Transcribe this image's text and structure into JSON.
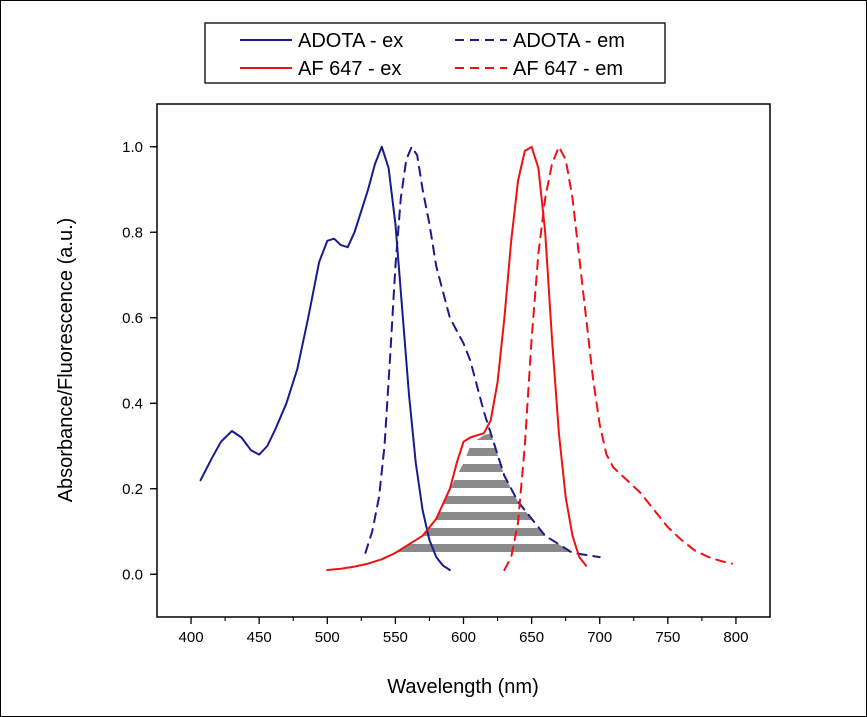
{
  "chart_data": {
    "type": "line",
    "title": "",
    "xlabel": "Wavelength (nm)",
    "ylabel": "Absorbance/Fluorescence (a.u.)",
    "xlim": [
      375,
      825
    ],
    "ylim": [
      -0.1,
      1.1
    ],
    "xticks": [
      400,
      450,
      500,
      550,
      600,
      650,
      700,
      750,
      800
    ],
    "yticks": [
      0.0,
      0.2,
      0.4,
      0.6,
      0.8,
      1.0
    ],
    "xtick_labels": [
      "400",
      "450",
      "500",
      "550",
      "600",
      "650",
      "700",
      "750",
      "800"
    ],
    "ytick_labels": [
      "0.0",
      "0.2",
      "0.4",
      "0.6",
      "0.8",
      "1.0"
    ],
    "grid": false,
    "legend_position": "top",
    "colors": {
      "navy": "#1a1a8c",
      "red": "#ee1111",
      "hatch": "#8a8a8a"
    },
    "series": [
      {
        "name": "ADOTA - ex",
        "color": "#1a1a8c",
        "dash": "solid",
        "x": [
          407,
          415,
          422,
          430,
          437,
          444,
          450,
          456,
          462,
          470,
          478,
          486,
          494,
          500,
          505,
          510,
          515,
          520,
          525,
          530,
          535,
          540,
          545,
          550,
          555,
          560,
          565,
          570,
          575,
          580,
          585,
          590
        ],
        "y": [
          0.22,
          0.27,
          0.31,
          0.335,
          0.32,
          0.29,
          0.28,
          0.3,
          0.34,
          0.4,
          0.48,
          0.6,
          0.73,
          0.78,
          0.785,
          0.77,
          0.765,
          0.8,
          0.85,
          0.9,
          0.96,
          1.0,
          0.95,
          0.82,
          0.62,
          0.42,
          0.26,
          0.15,
          0.08,
          0.04,
          0.02,
          0.01
        ]
      },
      {
        "name": "ADOTA - em",
        "color": "#1a1a8c",
        "dash": "dashed",
        "x": [
          528,
          533,
          538,
          542,
          546,
          550,
          554,
          558,
          562,
          566,
          570,
          575,
          580,
          585,
          590,
          595,
          600,
          605,
          610,
          615,
          620,
          625,
          630,
          640,
          650,
          660,
          670,
          680,
          690,
          700
        ],
        "y": [
          0.05,
          0.1,
          0.18,
          0.3,
          0.5,
          0.72,
          0.88,
          0.97,
          1.0,
          0.98,
          0.9,
          0.82,
          0.72,
          0.66,
          0.6,
          0.57,
          0.54,
          0.5,
          0.44,
          0.38,
          0.33,
          0.28,
          0.23,
          0.17,
          0.13,
          0.09,
          0.07,
          0.05,
          0.045,
          0.04
        ]
      },
      {
        "name": "AF 647 - ex",
        "color": "#ee1111",
        "dash": "solid",
        "x": [
          500,
          510,
          520,
          530,
          540,
          550,
          560,
          570,
          580,
          590,
          595,
          600,
          605,
          610,
          615,
          620,
          625,
          630,
          635,
          640,
          645,
          650,
          655,
          660,
          665,
          670,
          675,
          680,
          685,
          690
        ],
        "y": [
          0.01,
          0.013,
          0.018,
          0.025,
          0.035,
          0.05,
          0.07,
          0.09,
          0.13,
          0.2,
          0.26,
          0.31,
          0.32,
          0.325,
          0.33,
          0.36,
          0.45,
          0.6,
          0.78,
          0.92,
          0.99,
          1.0,
          0.95,
          0.8,
          0.55,
          0.33,
          0.18,
          0.09,
          0.04,
          0.02
        ]
      },
      {
        "name": "AF 647 - em",
        "color": "#ee1111",
        "dash": "dashed",
        "x": [
          630,
          635,
          640,
          645,
          650,
          655,
          660,
          665,
          670,
          675,
          680,
          685,
          690,
          695,
          700,
          705,
          710,
          720,
          730,
          740,
          750,
          760,
          770,
          780,
          790,
          797
        ],
        "y": [
          0.01,
          0.04,
          0.12,
          0.3,
          0.55,
          0.75,
          0.88,
          0.96,
          1.0,
          0.97,
          0.88,
          0.74,
          0.6,
          0.46,
          0.35,
          0.28,
          0.25,
          0.22,
          0.19,
          0.15,
          0.11,
          0.08,
          0.055,
          0.04,
          0.03,
          0.025
        ]
      }
    ],
    "overlap_region": {
      "fill": "horizontal-stripes",
      "x": [
        545,
        550,
        560,
        570,
        580,
        590,
        600,
        605,
        610,
        615,
        620,
        625,
        630,
        640,
        650,
        660,
        670,
        680,
        690
      ],
      "y": [
        0.035,
        0.05,
        0.07,
        0.09,
        0.13,
        0.2,
        0.26,
        0.3,
        0.315,
        0.325,
        0.33,
        0.28,
        0.23,
        0.17,
        0.13,
        0.09,
        0.07,
        0.05,
        0.035
      ]
    }
  }
}
